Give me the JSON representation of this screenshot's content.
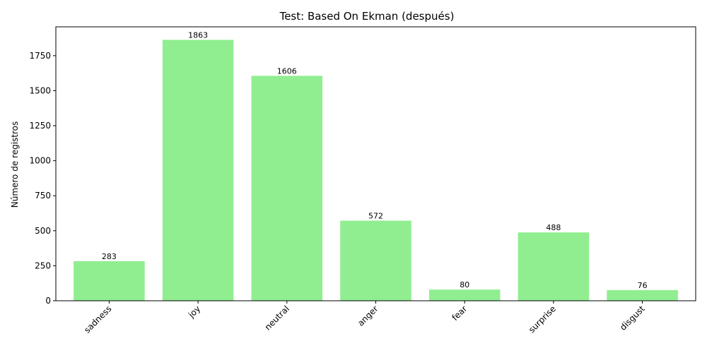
{
  "chart_data": {
    "type": "bar",
    "title": "Test: Based On Ekman (después)",
    "xlabel": "",
    "ylabel": "Número de registros",
    "categories": [
      "sadness",
      "joy",
      "neutral",
      "anger",
      "fear",
      "surprise",
      "disgust"
    ],
    "values": [
      283,
      1863,
      1606,
      572,
      80,
      488,
      76
    ],
    "data_labels": [
      "283",
      "1863",
      "1606",
      "572",
      "80",
      "488",
      "76"
    ],
    "yticks": [
      0,
      250,
      500,
      750,
      1000,
      1250,
      1500,
      1750
    ],
    "ytick_labels": [
      "0",
      "250",
      "500",
      "750",
      "1000",
      "1250",
      "1500",
      "1750"
    ],
    "ylim": [
      0,
      1956
    ],
    "grid": false,
    "colors": {
      "bar": "#90ee90",
      "axis": "#000000"
    }
  }
}
